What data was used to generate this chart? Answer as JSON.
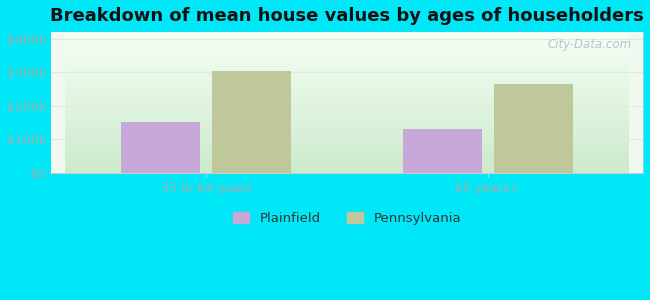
{
  "title": "Breakdown of mean house values by ages of householders",
  "categories": [
    "35 to 64 years",
    "65 years+"
  ],
  "plainfield_values": [
    150000,
    130000
  ],
  "pennsylvania_values": [
    305000,
    265000
  ],
  "plainfield_color": "#c8a8d8",
  "pennsylvania_color": "#bec89a",
  "background_outer": "#00e8f8",
  "background_top": "#f0f8f0",
  "background_bottom": "#d0eecc",
  "yticks": [
    0,
    100000,
    200000,
    300000,
    400000
  ],
  "ylabels": [
    "$0",
    "$100k",
    "$200k",
    "$300k",
    "$400k"
  ],
  "ylim": [
    0,
    420000
  ],
  "bar_width": 0.28,
  "legend_labels": [
    "Plainfield",
    "Pennsylvania"
  ],
  "watermark": "City-Data.com",
  "title_fontsize": 13,
  "tick_color": "#aaaaaa",
  "grid_color": "#e0e8e0",
  "title_color": "#111111"
}
